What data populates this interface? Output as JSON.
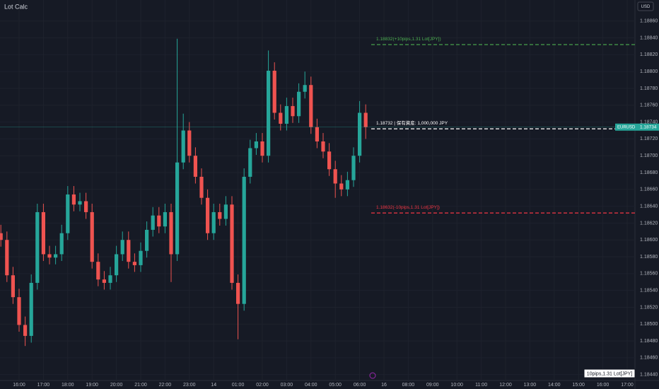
{
  "chart_data": {
    "type": "candlestick",
    "title": "Lot Calc",
    "currency": "USD",
    "symbol": "EURUSD",
    "last_price": 1.18734,
    "footer_note": "10pips,1.31 Lot[JPY]",
    "up_color": "#26a69a",
    "down_color": "#ef5350",
    "grid": true,
    "x": [
      -0.75,
      -0.5,
      -0.25,
      0,
      0.25,
      0.5,
      0.75,
      1,
      1.25,
      1.5,
      1.75,
      2,
      2.25,
      2.5,
      2.75,
      3,
      3.25,
      3.5,
      3.75,
      4,
      4.25,
      4.5,
      4.75,
      5,
      5.25,
      5.5,
      5.75,
      6,
      6.25,
      6.5,
      6.75,
      7,
      7.25,
      7.5,
      7.75,
      8,
      8.25,
      8.5,
      8.75,
      9,
      9.25,
      9.5,
      9.75,
      10,
      10.25,
      10.5,
      10.75,
      11,
      11.25,
      11.5,
      11.75,
      12,
      12.25,
      12.5,
      12.75,
      13,
      13.25,
      13.5,
      13.75,
      14,
      14.25
    ],
    "open": [
      1.18608,
      1.186,
      1.18558,
      1.18532,
      1.18499,
      1.18486,
      1.18549,
      1.18633,
      1.18583,
      1.18579,
      1.18583,
      1.18608,
      1.18654,
      1.18642,
      1.18646,
      1.18633,
      1.18574,
      1.18553,
      1.18549,
      1.18558,
      1.18583,
      1.186,
      1.18574,
      1.1857,
      1.18587,
      1.18612,
      1.18629,
      1.18616,
      1.18633,
      1.18583,
      1.18692,
      1.1873,
      1.187,
      1.18675,
      1.1865,
      1.18608,
      1.18633,
      1.18625,
      1.18642,
      1.18549,
      1.18524,
      1.18675,
      1.18709,
      1.18717,
      1.187,
      1.18801,
      1.18751,
      1.18738,
      1.18759,
      1.18747,
      1.18776,
      1.18784,
      1.18734,
      1.18717,
      1.18705,
      1.18684,
      1.18667,
      1.1866,
      1.18671,
      1.187,
      1.18751
    ],
    "high": [
      1.18618,
      1.1861,
      1.18568,
      1.18542,
      1.18509,
      1.18559,
      1.18643,
      1.18643,
      1.18593,
      1.18593,
      1.18618,
      1.18664,
      1.18664,
      1.18656,
      1.18656,
      1.18643,
      1.18584,
      1.18563,
      1.18568,
      1.18593,
      1.1861,
      1.1861,
      1.18584,
      1.18597,
      1.18622,
      1.18639,
      1.18639,
      1.18643,
      1.18643,
      1.18839,
      1.1875,
      1.1874,
      1.1871,
      1.18685,
      1.1866,
      1.18643,
      1.18643,
      1.18652,
      1.18652,
      1.18559,
      1.18685,
      1.18719,
      1.18727,
      1.18727,
      1.18825,
      1.18811,
      1.18761,
      1.18769,
      1.18769,
      1.18786,
      1.188,
      1.18794,
      1.18744,
      1.18727,
      1.18715,
      1.18694,
      1.18677,
      1.18681,
      1.1871,
      1.18765,
      1.18761
    ],
    "low": [
      1.18592,
      1.1855,
      1.18524,
      1.18491,
      1.18474,
      1.18478,
      1.18541,
      1.18575,
      1.18571,
      1.18571,
      1.18575,
      1.186,
      1.18634,
      1.18634,
      1.18625,
      1.18566,
      1.18545,
      1.18541,
      1.18541,
      1.1855,
      1.18575,
      1.18566,
      1.18562,
      1.18562,
      1.18579,
      1.18604,
      1.18608,
      1.18608,
      1.1855,
      1.18575,
      1.18684,
      1.18692,
      1.18667,
      1.18642,
      1.186,
      1.186,
      1.18617,
      1.18617,
      1.18541,
      1.18482,
      1.18516,
      1.18667,
      1.18701,
      1.18692,
      1.18692,
      1.18743,
      1.1873,
      1.1873,
      1.18739,
      1.18739,
      1.18768,
      1.18726,
      1.18709,
      1.18697,
      1.18676,
      1.1865,
      1.18652,
      1.18652,
      1.18663,
      1.18692,
      1.1872
    ],
    "close": [
      1.186,
      1.18558,
      1.18532,
      1.18499,
      1.18486,
      1.18549,
      1.18633,
      1.18583,
      1.18579,
      1.18583,
      1.18608,
      1.18654,
      1.18642,
      1.18646,
      1.18633,
      1.18574,
      1.18553,
      1.18549,
      1.18558,
      1.18583,
      1.186,
      1.18574,
      1.1857,
      1.18587,
      1.18612,
      1.18629,
      1.18616,
      1.18633,
      1.18583,
      1.18692,
      1.1873,
      1.187,
      1.18675,
      1.1865,
      1.18608,
      1.18633,
      1.18625,
      1.18642,
      1.18549,
      1.18524,
      1.18675,
      1.18709,
      1.18717,
      1.187,
      1.18801,
      1.18751,
      1.18738,
      1.18759,
      1.18747,
      1.18776,
      1.18784,
      1.18734,
      1.18717,
      1.18705,
      1.18684,
      1.18667,
      1.1866,
      1.18671,
      1.187,
      1.18751,
      1.18734
    ],
    "levels": [
      {
        "price": 1.18832,
        "label": "1.18832(+10pips,1.31 Lot[JPY])",
        "color": "#4caf50"
      },
      {
        "price": 1.18732,
        "label": "1.18732 | 保有資産: 1,000,000 JPY",
        "color": "#ffffff"
      },
      {
        "price": 1.18632,
        "label": "1.18632(-10pips,1.31 Lot[JPY])",
        "color": "#f23645"
      }
    ],
    "xlim": [
      -0.785,
      25.32
    ],
    "xticks": [
      {
        "value": 0,
        "label": "16:00"
      },
      {
        "value": 1,
        "label": "17:00"
      },
      {
        "value": 2,
        "label": "18:00"
      },
      {
        "value": 3,
        "label": "19:00"
      },
      {
        "value": 4,
        "label": "20:00"
      },
      {
        "value": 5,
        "label": "21:00"
      },
      {
        "value": 6,
        "label": "22:00"
      },
      {
        "value": 7,
        "label": "23:00"
      },
      {
        "value": 8,
        "label": "14"
      },
      {
        "value": 9,
        "label": "01:00"
      },
      {
        "value": 10,
        "label": "02:00"
      },
      {
        "value": 11,
        "label": "03:00"
      },
      {
        "value": 12,
        "label": "04:00"
      },
      {
        "value": 13,
        "label": "05:00"
      },
      {
        "value": 14,
        "label": "06:00"
      },
      {
        "value": 15,
        "label": "16"
      },
      {
        "value": 16,
        "label": "08:00"
      },
      {
        "value": 17,
        "label": "09:00"
      },
      {
        "value": 18,
        "label": "10:00"
      },
      {
        "value": 19,
        "label": "11:00"
      },
      {
        "value": 20,
        "label": "12:00"
      },
      {
        "value": 21,
        "label": "13:00"
      },
      {
        "value": 22,
        "label": "14:00"
      },
      {
        "value": 23,
        "label": "15:00"
      },
      {
        "value": 24,
        "label": "16:00"
      },
      {
        "value": 25,
        "label": "17:00"
      }
    ],
    "ylim": [
      1.18433,
      1.18885
    ],
    "yticks": [
      {
        "value": 1.1886,
        "label": "1.18860"
      },
      {
        "value": 1.1884,
        "label": "1.18840"
      },
      {
        "value": 1.1882,
        "label": "1.18820"
      },
      {
        "value": 1.188,
        "label": "1.18800"
      },
      {
        "value": 1.1878,
        "label": "1.18780"
      },
      {
        "value": 1.1876,
        "label": "1.18760"
      },
      {
        "value": 1.1874,
        "label": "1.18740"
      },
      {
        "value": 1.1872,
        "label": "1.18720"
      },
      {
        "value": 1.187,
        "label": "1.18700"
      },
      {
        "value": 1.1868,
        "label": "1.18680"
      },
      {
        "value": 1.1866,
        "label": "1.18660"
      },
      {
        "value": 1.1864,
        "label": "1.18640"
      },
      {
        "value": 1.1862,
        "label": "1.18620"
      },
      {
        "value": 1.186,
        "label": "1.18600"
      },
      {
        "value": 1.1858,
        "label": "1.18580"
      },
      {
        "value": 1.1856,
        "label": "1.18560"
      },
      {
        "value": 1.1854,
        "label": "1.18540"
      },
      {
        "value": 1.1852,
        "label": "1.18520"
      },
      {
        "value": 1.185,
        "label": "1.18500"
      },
      {
        "value": 1.1848,
        "label": "1.18480"
      },
      {
        "value": 1.1846,
        "label": "1.18460"
      },
      {
        "value": 1.1844,
        "label": "1.18440"
      }
    ]
  }
}
